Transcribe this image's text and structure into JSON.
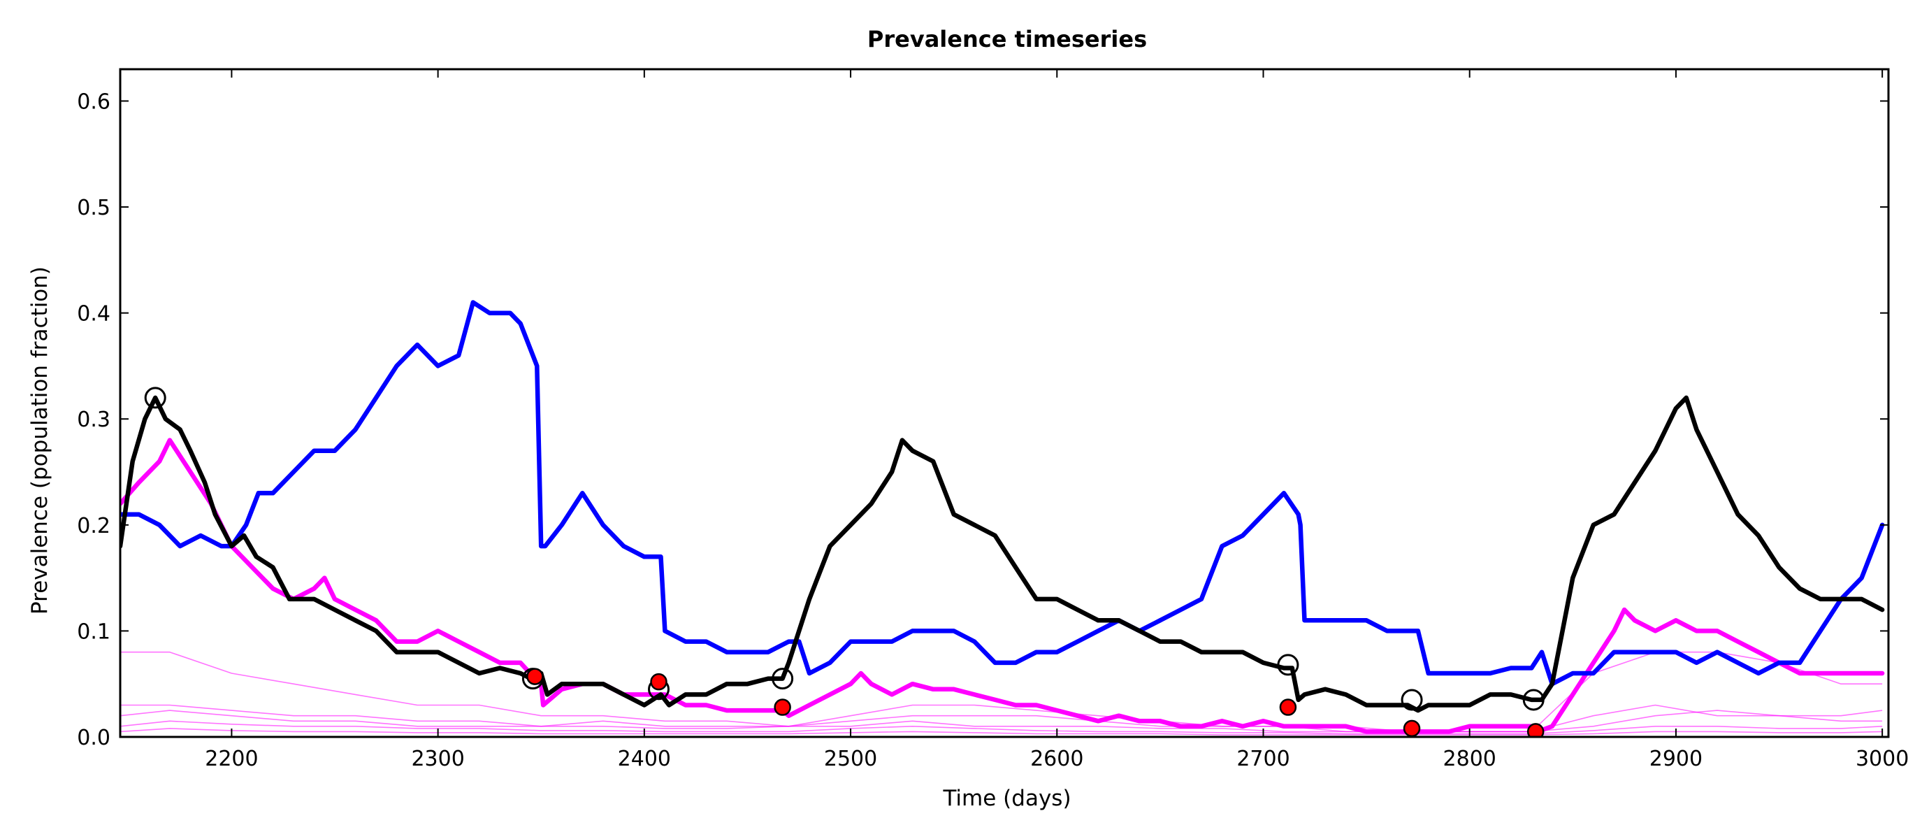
{
  "chart_data": {
    "type": "line",
    "title": "Prevalence timeseries",
    "xlabel": "Time (days)",
    "ylabel": "Prevalence (population fraction)",
    "xlim": [
      2146,
      3003
    ],
    "ylim": [
      0.0,
      0.63
    ],
    "x_ticks": [
      2200,
      2300,
      2400,
      2500,
      2600,
      2700,
      2800,
      2900,
      3000
    ],
    "y_ticks": [
      0.0,
      0.1,
      0.2,
      0.3,
      0.4,
      0.5,
      0.6
    ],
    "x_tick_labels": [
      "2200",
      "2300",
      "2400",
      "2500",
      "2600",
      "2700",
      "2800",
      "2900",
      "3000"
    ],
    "y_tick_labels": [
      "0.0",
      "0.1",
      "0.2",
      "0.3",
      "0.4",
      "0.5",
      "0.6"
    ],
    "grid": false,
    "legend": "none",
    "colors": {
      "black": "#000000",
      "blue": "#0000ff",
      "magenta": "#ff00ff",
      "marker_fill": "#ff0000"
    },
    "series": [
      {
        "color": "#000000",
        "x": [
          2146,
          2152,
          2158,
          2163,
          2168,
          2175,
          2180,
          2187,
          2192,
          2200,
          2206,
          2212,
          2220,
          2228,
          2240,
          2250,
          2260,
          2270,
          2280,
          2290,
          2300,
          2310,
          2320,
          2330,
          2340,
          2345,
          2350,
          2353,
          2360,
          2370,
          2380,
          2390,
          2400,
          2408,
          2412,
          2420,
          2430,
          2440,
          2450,
          2460,
          2467,
          2470,
          2480,
          2490,
          2500,
          2510,
          2520,
          2525,
          2530,
          2540,
          2550,
          2560,
          2570,
          2580,
          2590,
          2600,
          2610,
          2620,
          2630,
          2640,
          2650,
          2660,
          2670,
          2680,
          2690,
          2700,
          2710,
          2714,
          2717,
          2720,
          2730,
          2740,
          2750,
          2760,
          2770,
          2775,
          2780,
          2790,
          2800,
          2810,
          2820,
          2830,
          2835,
          2840,
          2845,
          2850,
          2860,
          2870,
          2880,
          2890,
          2900,
          2905,
          2910,
          2920,
          2930,
          2940,
          2950,
          2960,
          2970,
          2980,
          2990,
          3000
        ],
        "y": [
          0.18,
          0.26,
          0.3,
          0.32,
          0.3,
          0.29,
          0.27,
          0.24,
          0.21,
          0.18,
          0.19,
          0.17,
          0.16,
          0.13,
          0.13,
          0.12,
          0.11,
          0.1,
          0.08,
          0.08,
          0.08,
          0.07,
          0.06,
          0.065,
          0.06,
          0.055,
          0.06,
          0.04,
          0.05,
          0.05,
          0.05,
          0.04,
          0.03,
          0.04,
          0.03,
          0.04,
          0.04,
          0.05,
          0.05,
          0.055,
          0.055,
          0.07,
          0.13,
          0.18,
          0.2,
          0.22,
          0.25,
          0.28,
          0.27,
          0.26,
          0.21,
          0.2,
          0.19,
          0.16,
          0.13,
          0.13,
          0.12,
          0.11,
          0.11,
          0.1,
          0.09,
          0.09,
          0.08,
          0.08,
          0.08,
          0.07,
          0.065,
          0.065,
          0.035,
          0.04,
          0.045,
          0.04,
          0.03,
          0.03,
          0.03,
          0.025,
          0.03,
          0.03,
          0.03,
          0.04,
          0.04,
          0.035,
          0.035,
          0.05,
          0.1,
          0.15,
          0.2,
          0.21,
          0.24,
          0.27,
          0.31,
          0.32,
          0.29,
          0.25,
          0.21,
          0.19,
          0.16,
          0.14,
          0.13,
          0.13,
          0.13,
          0.12
        ]
      },
      {
        "color": "#0000ff",
        "x": [
          2146,
          2155,
          2165,
          2175,
          2185,
          2195,
          2200,
          2207,
          2213,
          2220,
          2230,
          2240,
          2250,
          2260,
          2270,
          2280,
          2290,
          2300,
          2310,
          2317,
          2325,
          2335,
          2340,
          2348,
          2350,
          2352,
          2360,
          2370,
          2380,
          2390,
          2400,
          2408,
          2410,
          2420,
          2430,
          2440,
          2450,
          2460,
          2470,
          2475,
          2480,
          2490,
          2500,
          2510,
          2520,
          2530,
          2540,
          2550,
          2560,
          2570,
          2580,
          2590,
          2600,
          2610,
          2620,
          2630,
          2640,
          2650,
          2660,
          2670,
          2680,
          2690,
          2700,
          2710,
          2717,
          2718,
          2720,
          2730,
          2740,
          2750,
          2760,
          2770,
          2771,
          2775,
          2780,
          2790,
          2800,
          2810,
          2820,
          2830,
          2835,
          2840,
          2850,
          2860,
          2870,
          2880,
          2890,
          2900,
          2910,
          2920,
          2930,
          2940,
          2950,
          2960,
          2970,
          2980,
          2990,
          3000
        ],
        "y": [
          0.21,
          0.21,
          0.2,
          0.18,
          0.19,
          0.18,
          0.18,
          0.2,
          0.23,
          0.23,
          0.25,
          0.27,
          0.27,
          0.29,
          0.32,
          0.35,
          0.37,
          0.35,
          0.36,
          0.41,
          0.4,
          0.4,
          0.39,
          0.35,
          0.18,
          0.18,
          0.2,
          0.23,
          0.2,
          0.18,
          0.17,
          0.17,
          0.1,
          0.09,
          0.09,
          0.08,
          0.08,
          0.08,
          0.09,
          0.09,
          0.06,
          0.07,
          0.09,
          0.09,
          0.09,
          0.1,
          0.1,
          0.1,
          0.09,
          0.07,
          0.07,
          0.08,
          0.08,
          0.09,
          0.1,
          0.11,
          0.1,
          0.11,
          0.12,
          0.13,
          0.18,
          0.19,
          0.21,
          0.23,
          0.21,
          0.2,
          0.11,
          0.11,
          0.11,
          0.11,
          0.1,
          0.1,
          0.1,
          0.1,
          0.06,
          0.06,
          0.06,
          0.06,
          0.065,
          0.065,
          0.08,
          0.05,
          0.06,
          0.06,
          0.08,
          0.08,
          0.08,
          0.08,
          0.07,
          0.08,
          0.07,
          0.06,
          0.07,
          0.07,
          0.1,
          0.13,
          0.15,
          0.2
        ]
      },
      {
        "color": "#ff00ff",
        "x": [
          2146,
          2155,
          2165,
          2170,
          2180,
          2190,
          2200,
          2210,
          2220,
          2230,
          2240,
          2245,
          2250,
          2260,
          2270,
          2280,
          2290,
          2300,
          2310,
          2320,
          2330,
          2340,
          2347,
          2350,
          2351,
          2360,
          2370,
          2380,
          2390,
          2400,
          2408,
          2410,
          2420,
          2430,
          2440,
          2450,
          2460,
          2467,
          2470,
          2480,
          2490,
          2500,
          2505,
          2510,
          2520,
          2530,
          2540,
          2550,
          2560,
          2570,
          2580,
          2590,
          2600,
          2610,
          2620,
          2630,
          2640,
          2650,
          2660,
          2670,
          2680,
          2690,
          2700,
          2710,
          2713,
          2720,
          2730,
          2740,
          2750,
          2760,
          2770,
          2773,
          2780,
          2790,
          2800,
          2810,
          2820,
          2830,
          2833,
          2840,
          2850,
          2860,
          2870,
          2875,
          2880,
          2890,
          2900,
          2910,
          2920,
          2930,
          2940,
          2950,
          2960,
          2970,
          2980,
          2990,
          3000
        ],
        "y": [
          0.22,
          0.24,
          0.26,
          0.28,
          0.25,
          0.22,
          0.18,
          0.16,
          0.14,
          0.13,
          0.14,
          0.15,
          0.13,
          0.12,
          0.11,
          0.09,
          0.09,
          0.1,
          0.09,
          0.08,
          0.07,
          0.07,
          0.055,
          0.05,
          0.03,
          0.045,
          0.05,
          0.05,
          0.04,
          0.04,
          0.04,
          0.04,
          0.03,
          0.03,
          0.025,
          0.025,
          0.025,
          0.025,
          0.02,
          0.03,
          0.04,
          0.05,
          0.06,
          0.05,
          0.04,
          0.05,
          0.045,
          0.045,
          0.04,
          0.035,
          0.03,
          0.03,
          0.025,
          0.02,
          0.015,
          0.02,
          0.015,
          0.015,
          0.01,
          0.01,
          0.015,
          0.01,
          0.015,
          0.01,
          0.01,
          0.01,
          0.01,
          0.01,
          0.005,
          0.005,
          0.005,
          0.005,
          0.005,
          0.005,
          0.01,
          0.01,
          0.01,
          0.01,
          0.005,
          0.01,
          0.04,
          0.07,
          0.1,
          0.12,
          0.11,
          0.1,
          0.11,
          0.1,
          0.1,
          0.09,
          0.08,
          0.07,
          0.06,
          0.06,
          0.06,
          0.06,
          0.06
        ]
      }
    ],
    "faint_series": [
      {
        "color": "#ff00ff",
        "x": [
          2146,
          2170,
          2200,
          2230,
          2260,
          2290,
          2320,
          2350,
          2380,
          2410,
          2440,
          2470,
          2500,
          2530,
          2560,
          2590,
          2620,
          2650,
          2680,
          2710,
          2740,
          2770,
          2800,
          2830,
          2860,
          2890,
          2920,
          2950,
          2980,
          3000
        ],
        "y": [
          0.08,
          0.08,
          0.06,
          0.05,
          0.04,
          0.03,
          0.03,
          0.02,
          0.02,
          0.015,
          0.015,
          0.01,
          0.02,
          0.03,
          0.03,
          0.025,
          0.02,
          0.015,
          0.01,
          0.01,
          0.01,
          0.005,
          0.005,
          0.005,
          0.06,
          0.08,
          0.08,
          0.07,
          0.05,
          0.05
        ]
      },
      {
        "color": "#ff00ff",
        "x": [
          2146,
          2170,
          2200,
          2230,
          2260,
          2290,
          2320,
          2350,
          2380,
          2410,
          2440,
          2470,
          2500,
          2530,
          2560,
          2590,
          2620,
          2650,
          2680,
          2710,
          2740,
          2770,
          2800,
          2830,
          2860,
          2890,
          2920,
          2950,
          2980,
          3000
        ],
        "y": [
          0.03,
          0.03,
          0.025,
          0.02,
          0.02,
          0.015,
          0.015,
          0.01,
          0.015,
          0.01,
          0.01,
          0.01,
          0.015,
          0.02,
          0.02,
          0.02,
          0.015,
          0.01,
          0.01,
          0.01,
          0.005,
          0.005,
          0.005,
          0.005,
          0.02,
          0.03,
          0.02,
          0.02,
          0.015,
          0.015
        ]
      },
      {
        "color": "#ff00ff",
        "x": [
          2146,
          2170,
          2200,
          2230,
          2260,
          2290,
          2320,
          2350,
          2380,
          2410,
          2440,
          2470,
          2500,
          2530,
          2560,
          2590,
          2620,
          2650,
          2680,
          2710,
          2740,
          2770,
          2800,
          2830,
          2860,
          2890,
          2920,
          2950,
          2980,
          3000
        ],
        "y": [
          0.02,
          0.025,
          0.02,
          0.015,
          0.015,
          0.01,
          0.01,
          0.01,
          0.01,
          0.008,
          0.008,
          0.01,
          0.01,
          0.015,
          0.01,
          0.01,
          0.01,
          0.008,
          0.008,
          0.005,
          0.005,
          0.005,
          0.005,
          0.005,
          0.01,
          0.02,
          0.025,
          0.02,
          0.02,
          0.025
        ]
      },
      {
        "color": "#ff00ff",
        "x": [
          2146,
          2170,
          2200,
          2230,
          2260,
          2290,
          2320,
          2350,
          2380,
          2410,
          2440,
          2470,
          2500,
          2530,
          2560,
          2590,
          2620,
          2650,
          2680,
          2710,
          2740,
          2770,
          2800,
          2830,
          2860,
          2890,
          2920,
          2950,
          2980,
          3000
        ],
        "y": [
          0.01,
          0.015,
          0.012,
          0.01,
          0.01,
          0.008,
          0.008,
          0.006,
          0.006,
          0.005,
          0.005,
          0.005,
          0.008,
          0.01,
          0.008,
          0.006,
          0.005,
          0.005,
          0.004,
          0.004,
          0.003,
          0.003,
          0.003,
          0.003,
          0.006,
          0.01,
          0.01,
          0.008,
          0.008,
          0.01
        ]
      },
      {
        "color": "#ff00ff",
        "x": [
          2146,
          2170,
          2200,
          2230,
          2260,
          2290,
          2320,
          2350,
          2380,
          2410,
          2440,
          2470,
          2500,
          2530,
          2560,
          2590,
          2620,
          2650,
          2680,
          2710,
          2740,
          2770,
          2800,
          2830,
          2860,
          2890,
          2920,
          2950,
          2980,
          3000
        ],
        "y": [
          0.005,
          0.008,
          0.006,
          0.005,
          0.005,
          0.004,
          0.004,
          0.003,
          0.003,
          0.003,
          0.003,
          0.003,
          0.004,
          0.005,
          0.004,
          0.003,
          0.003,
          0.003,
          0.002,
          0.002,
          0.002,
          0.002,
          0.002,
          0.002,
          0.003,
          0.005,
          0.005,
          0.004,
          0.004,
          0.005
        ]
      }
    ],
    "markers_open": [
      {
        "x": 2163,
        "y": 0.32
      },
      {
        "x": 2346,
        "y": 0.055
      },
      {
        "x": 2407,
        "y": 0.045
      },
      {
        "x": 2467,
        "y": 0.055
      },
      {
        "x": 2712,
        "y": 0.068
      },
      {
        "x": 2772,
        "y": 0.035
      },
      {
        "x": 2831,
        "y": 0.035
      }
    ],
    "markers_filled": [
      {
        "x": 2347,
        "y": 0.057
      },
      {
        "x": 2407,
        "y": 0.052
      },
      {
        "x": 2467,
        "y": 0.028
      },
      {
        "x": 2712,
        "y": 0.028
      },
      {
        "x": 2772,
        "y": 0.008
      },
      {
        "x": 2832,
        "y": 0.005
      }
    ]
  }
}
